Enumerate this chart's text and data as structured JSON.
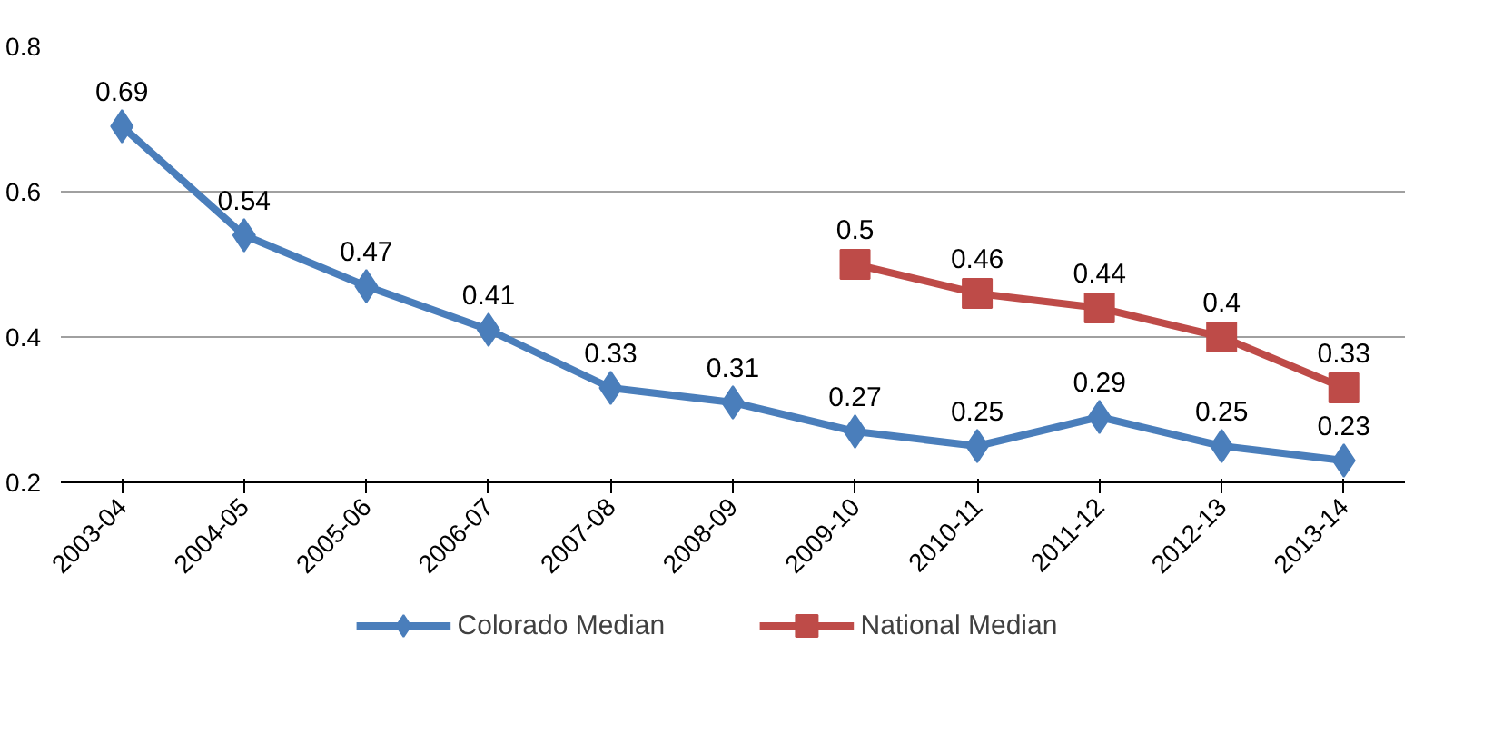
{
  "chart_data": {
    "type": "line",
    "categories": [
      "2003-04",
      "2004-05",
      "2005-06",
      "2006-07",
      "2007-08",
      "2008-09",
      "2009-10",
      "2010-11",
      "2011-12",
      "2012-13",
      "2013-14"
    ],
    "series": [
      {
        "name": "Colorado Median",
        "color": "#4a7ebb",
        "marker": "diamond",
        "values": [
          0.69,
          0.54,
          0.47,
          0.41,
          0.33,
          0.31,
          0.27,
          0.25,
          0.29,
          0.25,
          0.23
        ]
      },
      {
        "name": "National Median",
        "color": "#be4b48",
        "marker": "square",
        "values": [
          null,
          null,
          null,
          null,
          null,
          null,
          0.5,
          0.46,
          0.44,
          0.4,
          0.33
        ]
      }
    ],
    "ylim": [
      0.2,
      0.8
    ],
    "yticks": [
      0.2,
      0.4,
      0.6,
      0.8
    ],
    "grid": "y",
    "legend": "bottom",
    "data_labels": true,
    "line_style": "solid"
  }
}
